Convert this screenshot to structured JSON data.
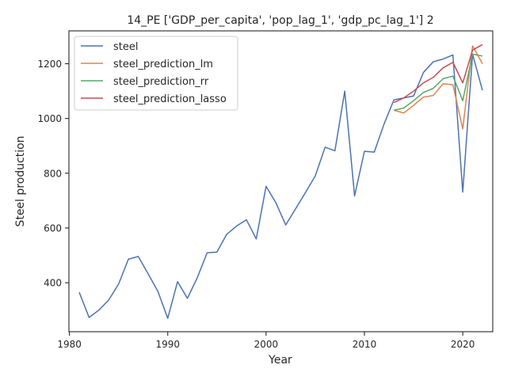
{
  "chart_data": {
    "type": "line",
    "title": "14_PE ['GDP_per_capita', 'pop_lag_1', 'gdp_pc_lag_1'] 2",
    "xlabel": "Year",
    "ylabel": "Steel production",
    "xlim": [
      1979.95,
      2023.05
    ],
    "ylim": [
      221,
      1320
    ],
    "xticks": [
      1980,
      1990,
      2000,
      2010,
      2020
    ],
    "yticks": [
      400,
      600,
      800,
      1000,
      1200
    ],
    "grid": false,
    "legend_position": "top-left",
    "series": [
      {
        "name": "steel",
        "color": "#4c72b0",
        "x": [
          1981,
          1982,
          1983,
          1984,
          1985,
          1986,
          1987,
          1988,
          1989,
          1990,
          1991,
          1992,
          1993,
          1994,
          1995,
          1996,
          1997,
          1998,
          1999,
          2000,
          2001,
          2002,
          2003,
          2004,
          2005,
          2006,
          2007,
          2008,
          2009,
          2010,
          2011,
          2012,
          2013,
          2014,
          2015,
          2016,
          2017,
          2018,
          2019,
          2020,
          2021,
          2022
        ],
        "y": [
          365,
          273,
          300,
          337,
          395,
          486,
          496,
          433,
          368,
          270,
          404,
          343,
          418,
          509,
          512,
          577,
          607,
          630,
          560,
          752,
          692,
          611,
          670,
          729,
          790,
          895,
          882,
          1100,
          717,
          880,
          877,
          980,
          1068,
          1075,
          1082,
          1168,
          1207,
          1217,
          1232,
          731,
          1235,
          1103
        ]
      },
      {
        "name": "steel_prediction_lm",
        "color": "#dd8452",
        "x": [
          2013,
          2014,
          2015,
          2016,
          2017,
          2018,
          2019,
          2020,
          2021,
          2022
        ],
        "y": [
          1030,
          1020,
          1048,
          1078,
          1084,
          1127,
          1123,
          962,
          1265,
          1200
        ]
      },
      {
        "name": "steel_prediction_rr",
        "color": "#55a868",
        "x": [
          2013,
          2014,
          2015,
          2016,
          2017,
          2018,
          2019,
          2020,
          2021,
          2022
        ],
        "y": [
          1030,
          1038,
          1065,
          1095,
          1110,
          1145,
          1155,
          1065,
          1235,
          1228
        ]
      },
      {
        "name": "steel_prediction_lasso",
        "color": "#c44e52",
        "x": [
          2013,
          2014,
          2015,
          2016,
          2017,
          2018,
          2019,
          2020,
          2021,
          2022
        ],
        "y": [
          1058,
          1075,
          1100,
          1130,
          1150,
          1185,
          1205,
          1130,
          1250,
          1270
        ]
      }
    ]
  }
}
